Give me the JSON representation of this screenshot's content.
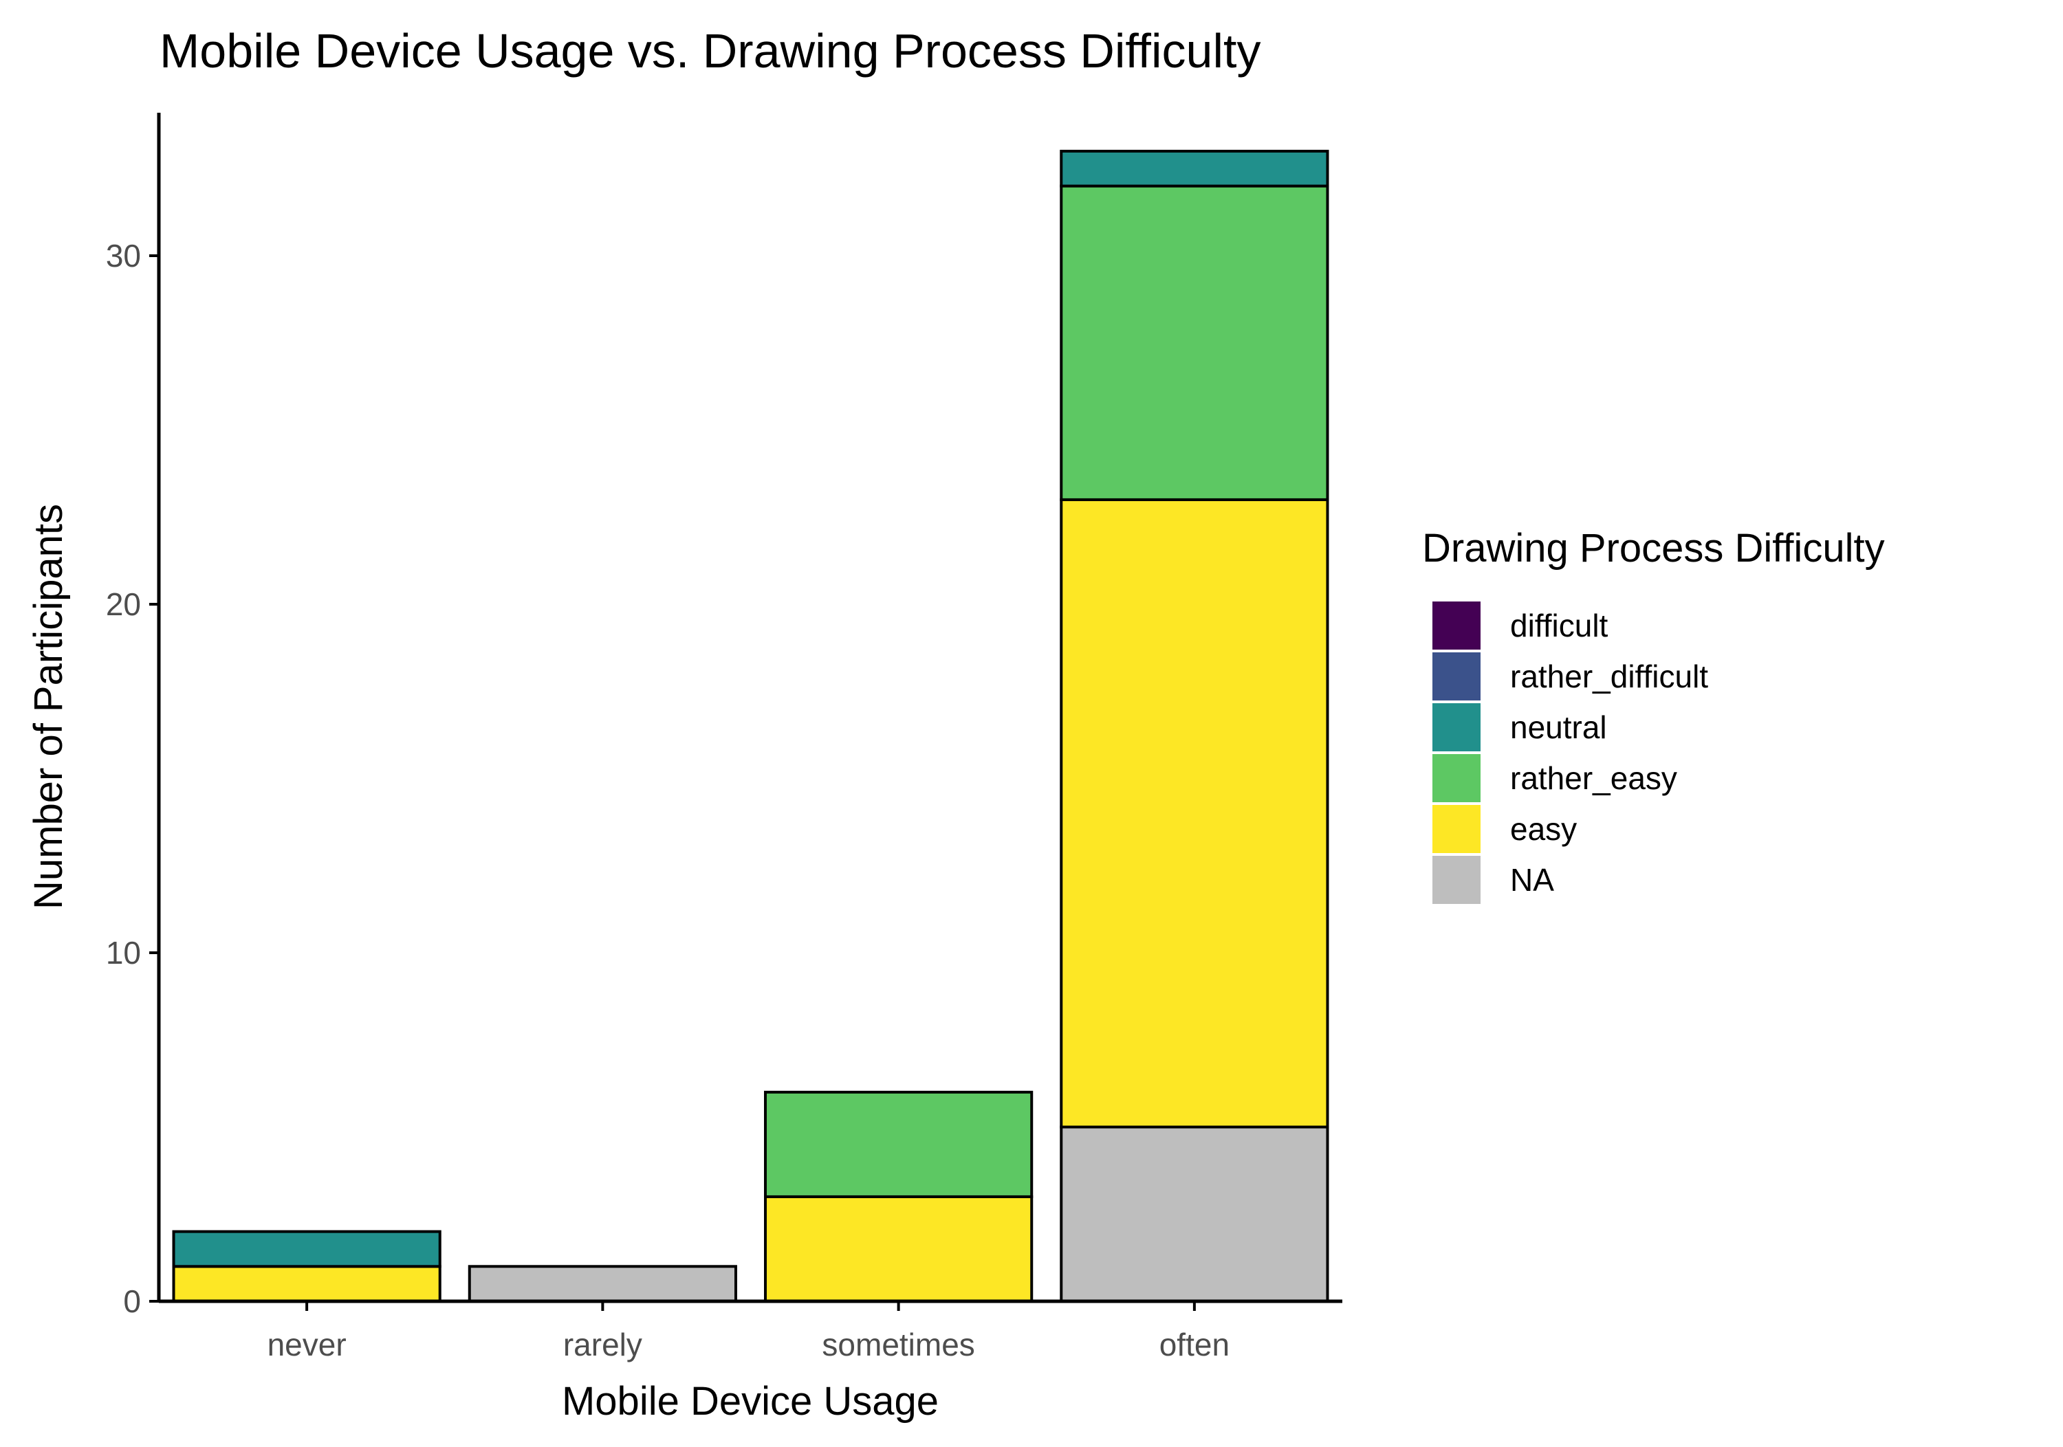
{
  "chart_data": {
    "type": "bar",
    "stacked": true,
    "title": "Mobile Device Usage vs. Drawing Process Difficulty",
    "xlabel": "Mobile Device Usage",
    "ylabel": "Number of Participants",
    "categories": [
      "never",
      "rarely",
      "sometimes",
      "often"
    ],
    "ylim": [
      0,
      33
    ],
    "yticks": [
      0,
      10,
      20,
      30
    ],
    "grid": false,
    "legend": {
      "title": "Drawing Process Difficulty",
      "position": "right"
    },
    "series": [
      {
        "name": "difficult",
        "color": "#440154",
        "values": [
          0,
          0,
          0,
          0
        ]
      },
      {
        "name": "rather_difficult",
        "color": "#3B528B",
        "values": [
          0,
          0,
          0,
          0
        ]
      },
      {
        "name": "neutral",
        "color": "#21908C",
        "values": [
          1,
          0,
          0,
          1
        ]
      },
      {
        "name": "rather_easy",
        "color": "#5DC863",
        "values": [
          0,
          0,
          3,
          9
        ]
      },
      {
        "name": "easy",
        "color": "#FDE725",
        "values": [
          1,
          0,
          3,
          18
        ]
      },
      {
        "name": "NA",
        "color": "#BEBEBE",
        "values": [
          0,
          1,
          0,
          5
        ]
      }
    ]
  }
}
